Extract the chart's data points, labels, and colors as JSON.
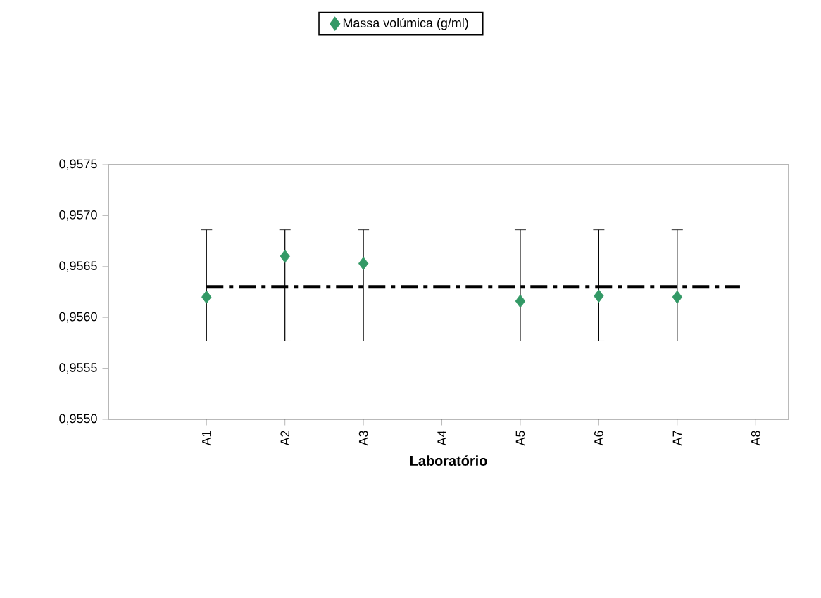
{
  "chart_data": {
    "type": "scatter",
    "xlabel": "Laboratório",
    "categories": [
      "A1",
      "A2",
      "A3",
      "A4",
      "A5",
      "A6",
      "A7",
      "A8"
    ],
    "series": [
      {
        "name": "Massa volúmica (g/ml)",
        "color": "#339966",
        "marker": "diamond",
        "values": [
          0.9562,
          0.9566,
          0.95653,
          null,
          0.95616,
          0.95621,
          0.9562,
          null
        ],
        "errors": [
          [
            0.95577,
            0.95686
          ],
          [
            0.95577,
            0.95686
          ],
          [
            0.95577,
            0.95686
          ],
          null,
          [
            0.95577,
            0.95686
          ],
          [
            0.95577,
            0.95686
          ],
          [
            0.95577,
            0.95686
          ],
          null
        ]
      }
    ],
    "ylim": [
      0.955,
      0.9575
    ],
    "yticks": [
      {
        "value": 0.955,
        "label": "0,9550"
      },
      {
        "value": 0.9555,
        "label": "0,9555"
      },
      {
        "value": 0.956,
        "label": "0,9560"
      },
      {
        "value": 0.9565,
        "label": "0,9565"
      },
      {
        "value": 0.957,
        "label": "0,9570"
      },
      {
        "value": 0.9575,
        "label": "0,9575"
      }
    ],
    "ref_lines": [
      {
        "axis": "y",
        "value": 0.9563,
        "color": "#000000",
        "line_style": "dashdot"
      }
    ],
    "legend": "top",
    "grid": false
  }
}
